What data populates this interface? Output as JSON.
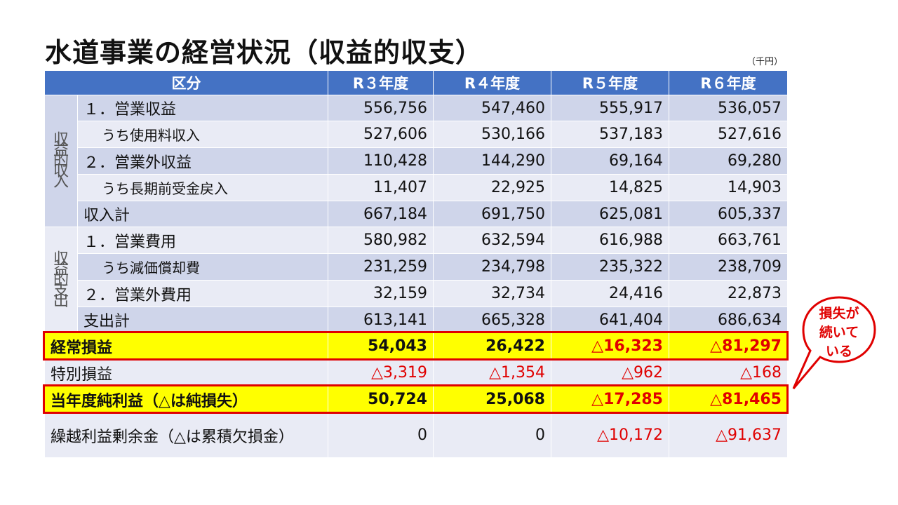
{
  "title": "水道事業の経営状況（収益的収支）",
  "unit": "（千円）",
  "header": {
    "category": "区分",
    "years": [
      "R３年度",
      "R４年度",
      "R５年度",
      "R６年度"
    ]
  },
  "income_group_label": [
    "収",
    "益",
    "的",
    "収",
    "入"
  ],
  "expense_group_label": [
    "収",
    "益",
    "的",
    "支",
    "出"
  ],
  "rows": [
    {
      "label": "１．営業収益",
      "values": [
        "556,756",
        "547,460",
        "555,917",
        "536,057"
      ]
    },
    {
      "label": "うち使用料収入",
      "values": [
        "527,606",
        "530,166",
        "537,183",
        "527,616"
      ]
    },
    {
      "label": "２．営業外収益",
      "values": [
        "110,428",
        "144,290",
        "69,164",
        "69,280"
      ]
    },
    {
      "label": "うち長期前受金戻入",
      "values": [
        "11,407",
        "22,925",
        "14,825",
        "14,903"
      ]
    },
    {
      "label": "収入計",
      "values": [
        "667,184",
        "691,750",
        "625,081",
        "605,337"
      ]
    },
    {
      "label": "１．営業費用",
      "values": [
        "580,982",
        "632,594",
        "616,988",
        "663,761"
      ]
    },
    {
      "label": "うち減価償却費",
      "values": [
        "231,259",
        "234,798",
        "235,322",
        "238,709"
      ]
    },
    {
      "label": "２．営業外費用",
      "values": [
        "32,159",
        "32,734",
        "24,416",
        "22,873"
      ]
    },
    {
      "label": "支出計",
      "values": [
        "613,141",
        "665,328",
        "641,404",
        "686,634"
      ]
    },
    {
      "label": "経常損益",
      "values": [
        "54,043",
        "26,422",
        "△16,323",
        "△81,297"
      ]
    },
    {
      "label": "特別損益",
      "values": [
        "△3,319",
        "△1,354",
        "△962",
        "△168"
      ]
    },
    {
      "label": "当年度純利益（△は純損失）",
      "values": [
        "50,724",
        "25,068",
        "△17,285",
        "△81,465"
      ]
    },
    {
      "label": "繰越利益剰余金（△は累積欠損金）",
      "values": [
        "0",
        "0",
        "△10,172",
        "△91,637"
      ]
    }
  ],
  "callout": {
    "lines": [
      "損失が",
      "続いて",
      "いる"
    ]
  },
  "colors": {
    "header_bg": "#4472c4",
    "row_dark": "#cfd5ea",
    "row_light": "#e9ebf5",
    "highlight": "#ffff00",
    "negative": "#e00000"
  }
}
